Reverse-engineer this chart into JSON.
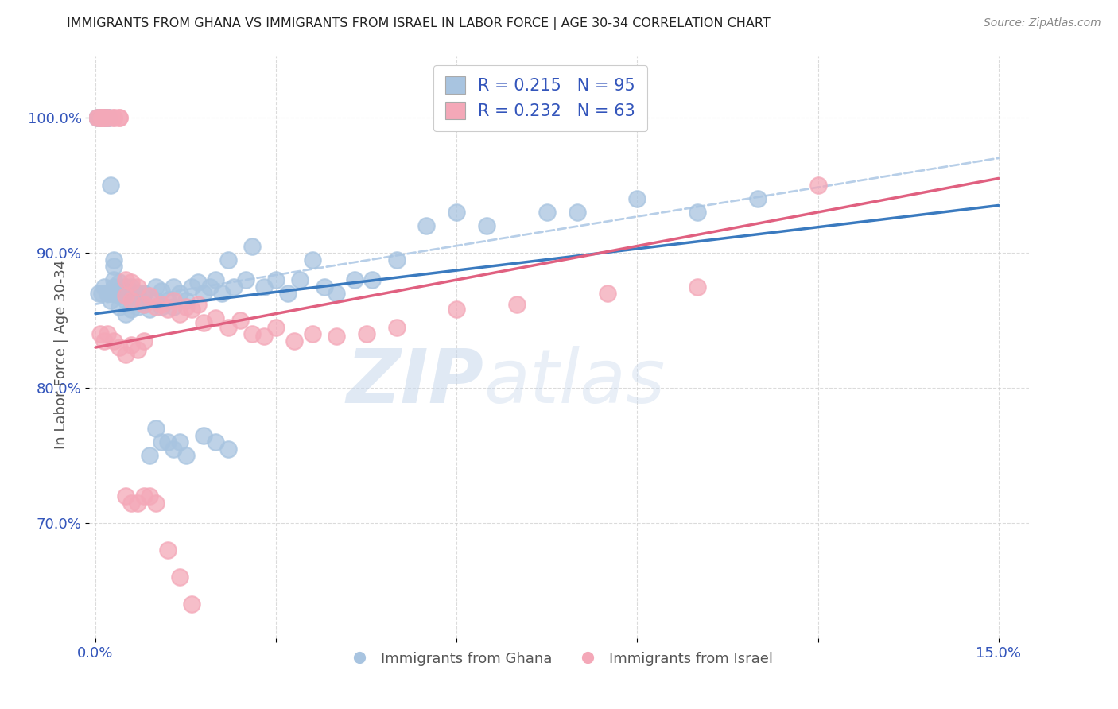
{
  "title": "IMMIGRANTS FROM GHANA VS IMMIGRANTS FROM ISRAEL IN LABOR FORCE | AGE 30-34 CORRELATION CHART",
  "source": "Source: ZipAtlas.com",
  "ylabel": "In Labor Force | Age 30-34",
  "y_ticks": [
    0.7,
    0.8,
    0.9,
    1.0
  ],
  "y_tick_labels": [
    "70.0%",
    "80.0%",
    "90.0%",
    "100.0%"
  ],
  "xlim": [
    -0.001,
    0.155
  ],
  "ylim": [
    0.615,
    1.045
  ],
  "ghana_R": 0.215,
  "ghana_N": 95,
  "israel_R": 0.232,
  "israel_N": 63,
  "ghana_color": "#a8c4e0",
  "israel_color": "#f4a8b8",
  "ghana_line_color": "#3a7abf",
  "israel_line_color": "#e06080",
  "dashed_line_color": "#b8cfe8",
  "legend_label_color": "#3355bb",
  "background_color": "#ffffff",
  "ghana_line_y0": 0.855,
  "ghana_line_y1": 0.935,
  "israel_line_y0": 0.83,
  "israel_line_y1": 0.955,
  "dashed_line_y0": 0.862,
  "dashed_line_y1": 0.97,
  "ghana_scatter_x": [
    0.0003,
    0.0005,
    0.0007,
    0.0008,
    0.001,
    0.001,
    0.001,
    0.0012,
    0.0013,
    0.0015,
    0.0015,
    0.0017,
    0.002,
    0.002,
    0.002,
    0.0022,
    0.0025,
    0.003,
    0.003,
    0.003,
    0.003,
    0.003,
    0.004,
    0.004,
    0.004,
    0.004,
    0.005,
    0.005,
    0.005,
    0.006,
    0.006,
    0.006,
    0.007,
    0.007,
    0.008,
    0.008,
    0.009,
    0.01,
    0.01,
    0.011,
    0.011,
    0.012,
    0.013,
    0.013,
    0.014,
    0.015,
    0.016,
    0.017,
    0.018,
    0.019,
    0.02,
    0.021,
    0.022,
    0.023,
    0.025,
    0.026,
    0.028,
    0.03,
    0.032,
    0.034,
    0.036,
    0.038,
    0.04,
    0.043,
    0.046,
    0.05,
    0.055,
    0.06,
    0.065,
    0.075,
    0.08,
    0.09,
    0.1,
    0.11,
    0.0005,
    0.001,
    0.0015,
    0.002,
    0.0025,
    0.003,
    0.004,
    0.005,
    0.006,
    0.007,
    0.008,
    0.009,
    0.01,
    0.011,
    0.012,
    0.013,
    0.014,
    0.015,
    0.018,
    0.02,
    0.022
  ],
  "ghana_scatter_y": [
    1.0,
    1.0,
    1.0,
    1.0,
    1.0,
    1.0,
    1.0,
    1.0,
    1.0,
    1.0,
    1.0,
    1.0,
    1.0,
    1.0,
    1.0,
    1.0,
    0.95,
    0.87,
    0.875,
    0.88,
    0.89,
    0.895,
    0.86,
    0.868,
    0.872,
    0.878,
    0.855,
    0.865,
    0.875,
    0.858,
    0.865,
    0.872,
    0.86,
    0.868,
    0.862,
    0.87,
    0.858,
    0.865,
    0.875,
    0.86,
    0.872,
    0.865,
    0.875,
    0.86,
    0.87,
    0.865,
    0.875,
    0.878,
    0.87,
    0.875,
    0.88,
    0.87,
    0.895,
    0.875,
    0.88,
    0.905,
    0.875,
    0.88,
    0.87,
    0.88,
    0.895,
    0.875,
    0.87,
    0.88,
    0.88,
    0.895,
    0.92,
    0.93,
    0.92,
    0.93,
    0.93,
    0.94,
    0.93,
    0.94,
    0.87,
    0.87,
    0.875,
    0.87,
    0.865,
    0.87,
    0.87,
    0.87,
    0.875,
    0.87,
    0.87,
    0.75,
    0.77,
    0.76,
    0.76,
    0.755,
    0.76,
    0.75,
    0.765,
    0.76,
    0.755
  ],
  "israel_scatter_x": [
    0.0003,
    0.0005,
    0.001,
    0.001,
    0.001,
    0.0012,
    0.0015,
    0.002,
    0.002,
    0.003,
    0.003,
    0.004,
    0.004,
    0.005,
    0.005,
    0.006,
    0.006,
    0.007,
    0.008,
    0.009,
    0.01,
    0.011,
    0.012,
    0.013,
    0.014,
    0.015,
    0.016,
    0.017,
    0.018,
    0.02,
    0.022,
    0.024,
    0.026,
    0.028,
    0.03,
    0.033,
    0.036,
    0.04,
    0.045,
    0.05,
    0.06,
    0.07,
    0.085,
    0.1,
    0.12,
    0.0008,
    0.0015,
    0.002,
    0.003,
    0.004,
    0.005,
    0.006,
    0.007,
    0.008,
    0.005,
    0.006,
    0.007,
    0.008,
    0.009,
    0.01,
    0.012,
    0.014,
    0.016
  ],
  "israel_scatter_y": [
    1.0,
    1.0,
    1.0,
    1.0,
    1.0,
    1.0,
    1.0,
    1.0,
    1.0,
    1.0,
    1.0,
    1.0,
    1.0,
    0.88,
    0.868,
    0.878,
    0.865,
    0.875,
    0.862,
    0.868,
    0.86,
    0.862,
    0.858,
    0.865,
    0.855,
    0.86,
    0.858,
    0.862,
    0.848,
    0.852,
    0.845,
    0.85,
    0.84,
    0.838,
    0.845,
    0.835,
    0.84,
    0.838,
    0.84,
    0.845,
    0.858,
    0.862,
    0.87,
    0.875,
    0.95,
    0.84,
    0.835,
    0.84,
    0.835,
    0.83,
    0.825,
    0.832,
    0.828,
    0.835,
    0.72,
    0.715,
    0.715,
    0.72,
    0.72,
    0.715,
    0.68,
    0.66,
    0.64
  ]
}
